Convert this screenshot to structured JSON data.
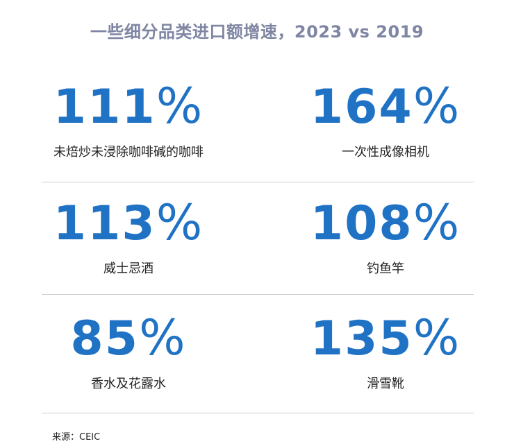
{
  "chart_data": {
    "type": "table",
    "title": "一些细分品类进口额增速，2023 vs 2019",
    "unit": "%",
    "items": [
      {
        "label": "未焙炒未浸除咖啡碱的咖啡",
        "value": 111
      },
      {
        "label": "一次性成像相机",
        "value": 164
      },
      {
        "label": "威士忌酒",
        "value": 113
      },
      {
        "label": "钓鱼竿",
        "value": 108
      },
      {
        "label": "香水及花露水",
        "value": 85
      },
      {
        "label": "滑雪靴",
        "value": 135
      }
    ],
    "source": "来源：CEIC"
  }
}
